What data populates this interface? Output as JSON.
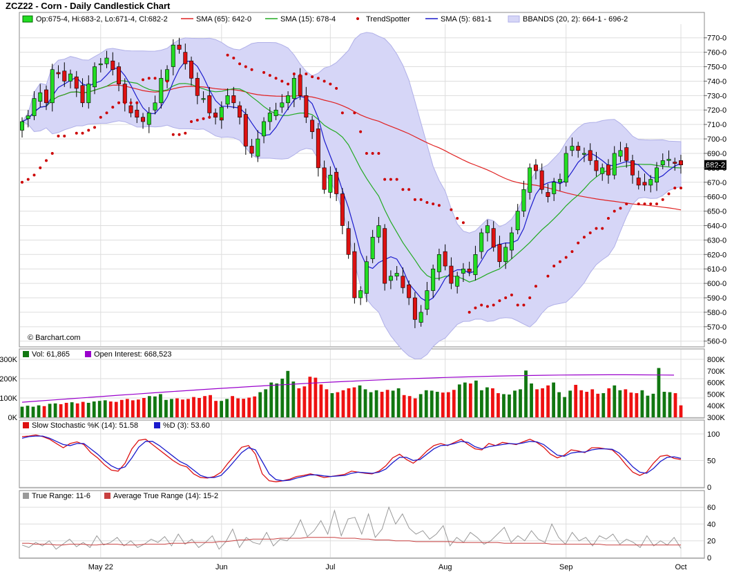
{
  "title": "ZCZ22 - Corn - Daily Candlestick Chart",
  "watermark": "© Barchart.com",
  "colors": {
    "up": "#22dd22",
    "down": "#dd1111",
    "sma65": "#e02020",
    "sma15": "#22aa22",
    "sma5": "#1a1acc",
    "trendspotter": "#cc0000",
    "bband_fill": "#d6d6f7",
    "bband_edge": "#b0b0e8",
    "vol_up": "#117711",
    "vol_down": "#ee1111",
    "oi": "#9900cc",
    "stoch_k": "#dd1111",
    "stoch_d": "#1a1acc",
    "tr": "#999999",
    "atr": "#c84040",
    "grid": "#dddddd"
  },
  "price_legend": {
    "ohlc": "Op:675-4, Hi:683-2, Lo:671-4, Cl:682-2",
    "sma65": "SMA (65): 642-0",
    "sma15": "SMA (15): 678-4",
    "trendspotter": "TrendSpotter",
    "sma5": "SMA (5): 681-1",
    "bbands": "BBANDS (20, 2): 664-1 - 696-2"
  },
  "volume_legend": {
    "vol": "Vol: 61,865",
    "oi": "Open Interest: 668,523"
  },
  "stoch_legend": {
    "k": "Slow Stochastic %K (14): 51.58",
    "d": "%D (3): 53.60"
  },
  "tr_legend": {
    "tr": "True Range: 11-6",
    "atr": "Average True Range (14): 15-2"
  },
  "last_price_label": "682-2",
  "x_labels": [
    "May 22",
    "Jun",
    "Jul",
    "Aug",
    "Sep",
    "Oct"
  ],
  "chart_data": [
    {
      "type": "candlestick",
      "title": "ZCZ22 - Corn - Daily Candlestick Chart",
      "y_tick_labels": [
        "560-0",
        "570-0",
        "580-0",
        "590-0",
        "600-0",
        "610-0",
        "620-0",
        "630-0",
        "640-0",
        "650-0",
        "660-0",
        "670-0",
        "680-0",
        "690-0",
        "700-0",
        "710-0",
        "720-0",
        "730-0",
        "740-0",
        "750-0",
        "760-0",
        "770-0"
      ],
      "ylim": [
        557,
        778
      ],
      "close": [
        712,
        716,
        728,
        732,
        725,
        748,
        745,
        740,
        745,
        735,
        725,
        738,
        750,
        752,
        756,
        748,
        738,
        725,
        718,
        715,
        712,
        718,
        725,
        742,
        748,
        765,
        762,
        752,
        742,
        730,
        728,
        718,
        715,
        722,
        730,
        725,
        715,
        695,
        690,
        700,
        712,
        718,
        720,
        725,
        730,
        742,
        730,
        715,
        705,
        680,
        665,
        675,
        662,
        640,
        620,
        590,
        595,
        615,
        632,
        640,
        600,
        605,
        607,
        597,
        590,
        575,
        580,
        595,
        610,
        620,
        612,
        600,
        605,
        610,
        608,
        620,
        635,
        640,
        625,
        615,
        625,
        635,
        650,
        665,
        680,
        678,
        665,
        660,
        670,
        672,
        690,
        695,
        692,
        690,
        685,
        678,
        680,
        675,
        690,
        692,
        685,
        675,
        668,
        668,
        672,
        680,
        685,
        686,
        683,
        682
      ],
      "trendspotter": [
        670,
        672,
        675,
        680,
        685,
        690,
        702,
        702,
        704,
        704,
        706,
        708,
        715,
        718,
        722,
        725,
        725,
        725,
        725,
        741,
        742,
        742,
        740,
        703,
        703,
        704,
        712,
        713,
        714,
        715,
        716,
        714,
        758,
        756,
        752,
        750,
        748,
        746,
        744,
        742,
        740,
        738,
        745,
        744,
        745,
        743,
        742,
        740,
        738,
        735,
        718,
        718,
        705,
        690,
        690,
        690,
        672,
        672,
        672,
        665,
        665,
        658,
        658,
        656,
        655,
        654,
        651,
        645,
        642,
        580,
        583,
        585,
        584,
        585,
        588,
        590,
        592,
        585,
        585,
        590,
        598,
        605,
        612,
        615,
        618,
        622,
        628,
        632,
        635,
        638,
        638,
        645,
        650,
        652,
        655,
        655,
        655,
        655,
        655,
        658,
        662,
        666,
        666
      ]
    },
    {
      "type": "bar",
      "title": "Volume / Open Interest",
      "y_tick_labels_left": [
        "0K",
        "100K",
        "200K",
        "300K"
      ],
      "y_tick_labels_right": [
        "300K",
        "400K",
        "500K",
        "600K",
        "700K",
        "800K"
      ],
      "volume": [
        55,
        60,
        55,
        62,
        58,
        70,
        72,
        68,
        75,
        78,
        72,
        80,
        75,
        82,
        85,
        88,
        82,
        80,
        90,
        95,
        88,
        92,
        100,
        110,
        108,
        120,
        90,
        95,
        98,
        92,
        95,
        105,
        100,
        110,
        115,
        85,
        85,
        95,
        110,
        98,
        96,
        102,
        108,
        130,
        145,
        180,
        175,
        200,
        240,
        185,
        150,
        160,
        210,
        205,
        170,
        145,
        125,
        130,
        140,
        150,
        155,
        165,
        145,
        130,
        140,
        132,
        142,
        138,
        150,
        115,
        110,
        98,
        120,
        140,
        138,
        132,
        128,
        130,
        142,
        170,
        180,
        175,
        190,
        140,
        155,
        150,
        125,
        120,
        118,
        138,
        145,
        242,
        175,
        145,
        150,
        165,
        180,
        130,
        105,
        138,
        168,
        140,
        132,
        145,
        122,
        125,
        150,
        165,
        140,
        145,
        128,
        125,
        140,
        112,
        122,
        255,
        132,
        130,
        125,
        62
      ],
      "open_interest_range": [
        400000,
        680000
      ]
    },
    {
      "type": "line",
      "title": "Slow Stochastic",
      "y_tick_labels": [
        "0",
        "50",
        "100"
      ],
      "series": [
        {
          "name": "Slow Stochastic %K (14): 51.58",
          "values": [
            95,
            96,
            98,
            95,
            90,
            82,
            74,
            82,
            85,
            80,
            65,
            55,
            42,
            32,
            30,
            45,
            72,
            88,
            90,
            80,
            70,
            60,
            50,
            42,
            38,
            25,
            18,
            17,
            20,
            28,
            45,
            60,
            75,
            78,
            62,
            25,
            12,
            10,
            12,
            15,
            20,
            22,
            25,
            22,
            18,
            20,
            22,
            24,
            30,
            28,
            26,
            25,
            30,
            40,
            55,
            62,
            52,
            45,
            55,
            68,
            78,
            82,
            78,
            84,
            90,
            80,
            72,
            70,
            82,
            78,
            84,
            82,
            80,
            85,
            90,
            84,
            75,
            62,
            55,
            60,
            70,
            68,
            65,
            74,
            74,
            72,
            70,
            58,
            42,
            28,
            22,
            28,
            45,
            58,
            60,
            54,
            52
          ]
        },
        {
          "name": "%D (3): 53.60",
          "values": [
            92,
            95,
            96,
            96,
            92,
            86,
            80,
            78,
            82,
            82,
            72,
            62,
            50,
            40,
            34,
            38,
            55,
            75,
            86,
            86,
            78,
            68,
            58,
            48,
            42,
            32,
            22,
            18,
            18,
            22,
            35,
            50,
            65,
            74,
            70,
            48,
            25,
            14,
            12,
            13,
            17,
            20,
            23,
            23,
            21,
            20,
            21,
            22,
            26,
            28,
            27,
            26,
            28,
            34,
            46,
            56,
            56,
            50,
            52,
            62,
            72,
            78,
            79,
            82,
            86,
            84,
            76,
            72,
            76,
            78,
            80,
            82,
            81,
            83,
            86,
            85,
            80,
            70,
            60,
            58,
            64,
            66,
            66,
            70,
            72,
            72,
            71,
            64,
            52,
            38,
            28,
            26,
            35,
            48,
            56,
            57,
            54
          ]
        }
      ]
    },
    {
      "type": "line",
      "title": "True Range",
      "y_tick_labels": [
        "0",
        "20",
        "40",
        "60"
      ],
      "series": [
        {
          "name": "True Range: 11-6",
          "values": [
            15,
            12,
            18,
            14,
            20,
            10,
            16,
            22,
            13,
            18,
            12,
            26,
            15,
            18,
            24,
            14,
            20,
            12,
            16,
            22,
            18,
            25,
            14,
            28,
            16,
            22,
            12,
            18,
            26,
            10,
            19,
            34,
            12,
            24,
            18,
            16,
            30,
            14,
            22,
            20,
            28,
            45,
            25,
            32,
            44,
            28,
            56,
            26,
            46,
            48,
            28,
            52,
            24,
            34,
            60,
            40,
            52,
            35,
            28,
            32,
            22,
            28,
            38,
            14,
            24,
            18,
            30,
            24,
            16,
            20,
            28,
            36,
            18,
            26,
            20,
            32,
            22,
            18,
            40,
            24,
            16,
            30,
            20,
            24,
            14,
            26,
            22,
            28,
            16,
            22,
            18,
            12,
            26,
            14,
            20,
            15,
            24,
            11
          ]
        },
        {
          "name": "Average True Range (14): 15-2",
          "values": [
            17,
            17,
            16,
            16,
            16,
            15,
            15,
            16,
            16,
            16,
            15,
            15,
            16,
            16,
            16,
            15,
            15,
            15,
            16,
            16,
            16,
            16,
            17,
            17,
            17,
            18,
            18,
            18,
            18,
            19,
            19,
            20,
            21,
            21,
            22,
            22,
            22,
            22,
            23,
            23,
            23,
            23,
            24,
            24,
            24,
            24,
            24,
            23,
            23,
            23,
            22,
            22,
            21,
            21,
            21,
            20,
            20,
            20,
            19,
            19,
            19,
            19,
            19,
            19,
            18,
            18,
            18,
            18,
            18,
            18,
            18,
            17,
            17,
            17,
            17,
            17,
            17,
            17,
            16,
            16,
            16,
            16,
            16,
            16,
            16,
            16,
            15,
            15,
            15,
            15,
            15,
            15,
            15,
            15,
            15,
            15,
            15,
            15
          ]
        }
      ]
    }
  ]
}
